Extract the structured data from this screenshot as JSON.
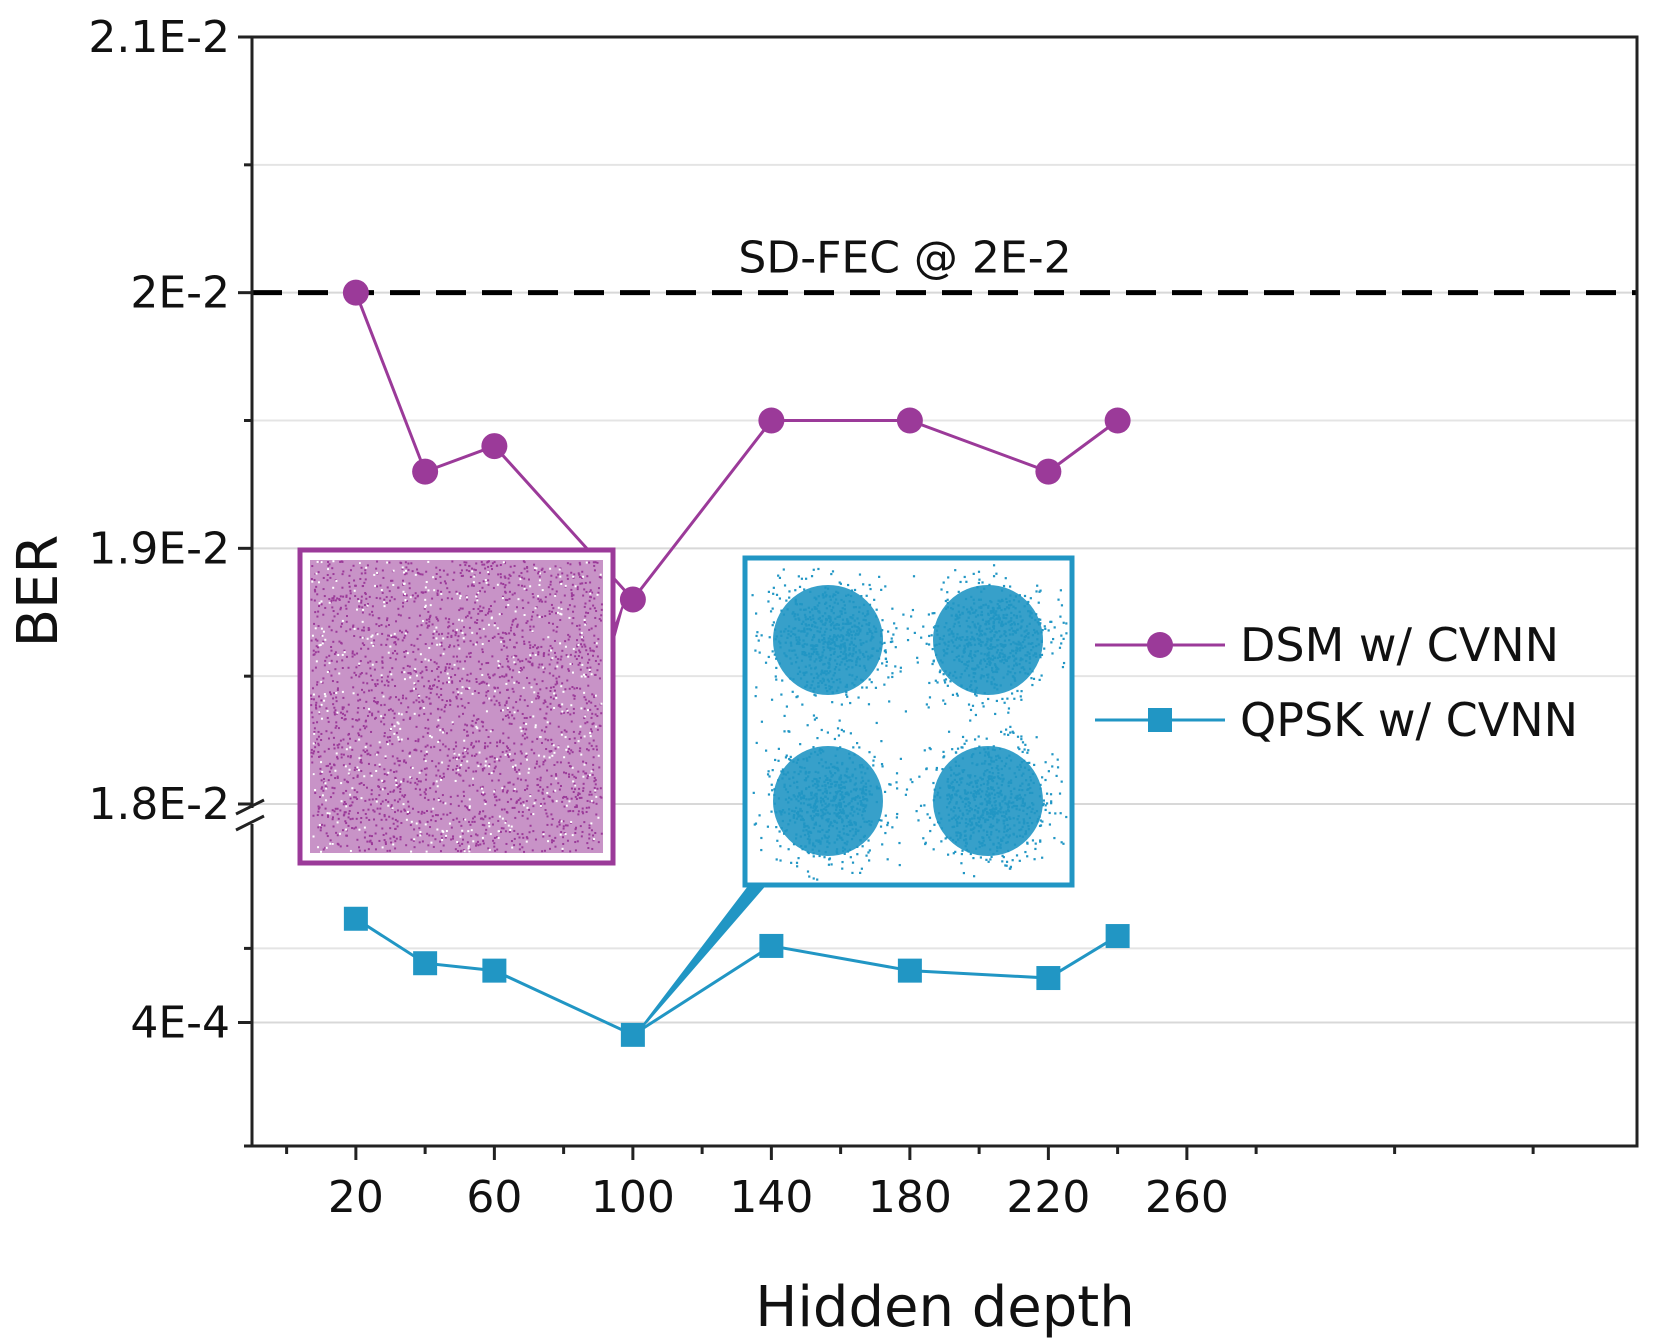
{
  "chart_data": {
    "type": "line",
    "title": "",
    "xlabel": "Hidden depth",
    "ylabel": "BER",
    "x_ticks": [
      "20",
      "60",
      "100",
      "140",
      "180",
      "220",
      "260"
    ],
    "xlim": [
      -10,
      390
    ],
    "y_scale": "broken",
    "y_segments": [
      {
        "range": [
          0.00035,
          0.00045
        ],
        "ticks": [
          "4E-4"
        ],
        "tick_values": [
          0.0004
        ]
      },
      {
        "range": [
          0.018,
          0.021
        ],
        "ticks": [
          "1.8E-2",
          "1.9E-2",
          "2E-2",
          "2.1E-2"
        ],
        "tick_values": [
          0.018,
          0.019,
          0.02,
          0.021
        ]
      }
    ],
    "grid": true,
    "legend_position": "right",
    "series": [
      {
        "name": "DSM w/ CVNN",
        "color": "#9b3a99",
        "marker": "circle",
        "x": [
          20,
          40,
          60,
          100,
          140,
          180,
          220,
          240
        ],
        "y": [
          0.02,
          0.0193,
          0.0194,
          0.0188,
          0.0195,
          0.0195,
          0.0193,
          0.0195
        ]
      },
      {
        "name": "QPSK w/ CVNN",
        "color": "#2196c4",
        "marker": "square",
        "x": [
          20,
          40,
          60,
          100,
          140,
          180,
          220,
          240
        ],
        "y": [
          0.000442,
          0.000424,
          0.000421,
          0.000395,
          0.000431,
          0.000421,
          0.000418,
          0.000435
        ]
      }
    ],
    "reference_line": {
      "label": "SD-FEC @ 2E-2",
      "y": 0.02,
      "style": "dashed",
      "color": "#000000"
    },
    "insets": [
      {
        "series": "DSM w/ CVNN",
        "anchor_x": 100,
        "color": "#9b3a99",
        "content": "uniform-square-constellation"
      },
      {
        "series": "QPSK w/ CVNN",
        "anchor_x": 100,
        "color": "#2196c4",
        "content": "four-cluster-constellation"
      }
    ]
  }
}
